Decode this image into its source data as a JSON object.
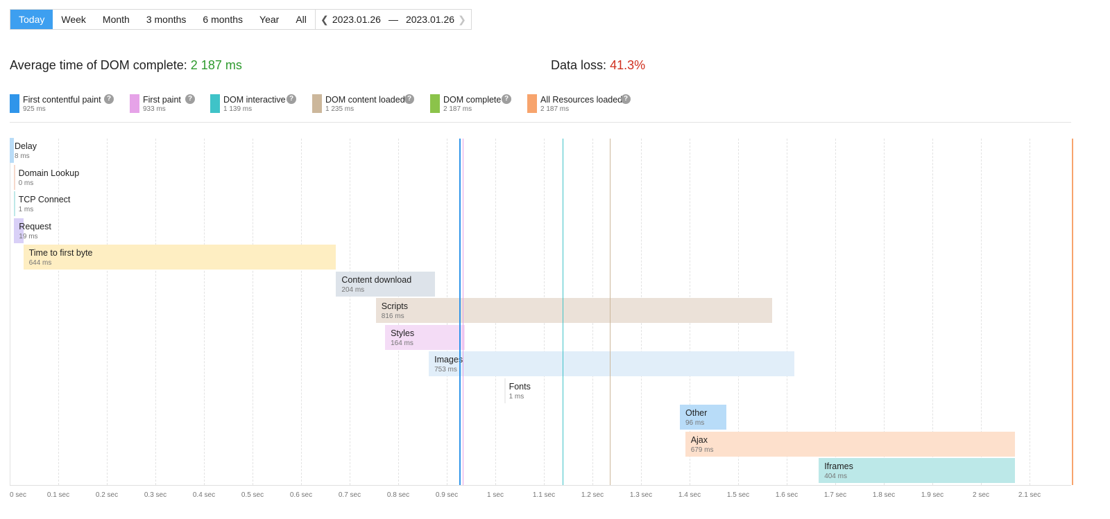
{
  "toolbar": {
    "periods": [
      {
        "label": "Today",
        "active": true
      },
      {
        "label": "Week",
        "active": false
      },
      {
        "label": "Month",
        "active": false
      },
      {
        "label": "3 months",
        "active": false
      },
      {
        "label": "6 months",
        "active": false
      },
      {
        "label": "Year",
        "active": false
      },
      {
        "label": "All",
        "active": false
      }
    ],
    "date_from": "2023.01.26",
    "date_separator": "—",
    "date_to": "2023.01.26",
    "prev_icon": "chevron-left-icon",
    "next_icon": "chevron-right-icon"
  },
  "summary": {
    "avg_label": "Average time of DOM complete:",
    "avg_value": "2 187 ms",
    "loss_label": "Data loss:",
    "loss_value": "41.3%"
  },
  "legend": [
    {
      "name": "First contentful paint",
      "value": "925 ms",
      "color": "#2f95ea",
      "ms": 925
    },
    {
      "name": "First paint",
      "value": "933 ms",
      "color": "#e6a3e8",
      "ms": 933
    },
    {
      "name": "DOM interactive",
      "value": "1 139 ms",
      "color": "#3fc3c8",
      "ms": 1139
    },
    {
      "name": "DOM content loaded",
      "value": "1 235 ms",
      "color": "#ccb79b",
      "ms": 1235
    },
    {
      "name": "DOM complete",
      "value": "2 187 ms",
      "color": "#8bc34a",
      "ms": 2187
    },
    {
      "name": "All Resources loaded",
      "value": "2 187 ms",
      "color": "#f7a46d",
      "ms": 2187
    }
  ],
  "chart_data": {
    "type": "bar",
    "orientation": "waterfall",
    "xlim_sec": [
      0,
      2.2
    ],
    "x_ticks": [
      "0 sec",
      "0.1 sec",
      "0.2 sec",
      "0.3 sec",
      "0.4 sec",
      "0.5 sec",
      "0.6 sec",
      "0.7 sec",
      "0.8 sec",
      "0.9 sec",
      "1 sec",
      "1.1 sec",
      "1.2 sec",
      "1.3 sec",
      "1.4 sec",
      "1.5 sec",
      "1.6 sec",
      "1.7 sec",
      "1.8 sec",
      "1.9 sec",
      "2 sec",
      "2.1 sec"
    ],
    "phases": [
      {
        "name": "Delay",
        "value": "8 ms",
        "start_ms": 0,
        "duration_ms": 8,
        "color": "#b9dcf7"
      },
      {
        "name": "Domain Lookup",
        "value": "0 ms",
        "start_ms": 8,
        "duration_ms": 0,
        "color": "#f6d9cc"
      },
      {
        "name": "TCP Connect",
        "value": "1 ms",
        "start_ms": 8,
        "duration_ms": 1,
        "color": "#bfe8e8"
      },
      {
        "name": "Request",
        "value": "19 ms",
        "start_ms": 9,
        "duration_ms": 19,
        "color": "#d9d0f7"
      },
      {
        "name": "Time to first byte",
        "value": "644 ms",
        "start_ms": 28,
        "duration_ms": 644,
        "color": "#feeec2"
      },
      {
        "name": "Content download",
        "value": "204 ms",
        "start_ms": 672,
        "duration_ms": 204,
        "color": "#dde3ea"
      },
      {
        "name": "Scripts",
        "value": "816 ms",
        "start_ms": 754,
        "duration_ms": 816,
        "color": "#ebe1d8"
      },
      {
        "name": "Styles",
        "value": "164 ms",
        "start_ms": 773,
        "duration_ms": 164,
        "color": "#f4dcf6"
      },
      {
        "name": "Images",
        "value": "753 ms",
        "start_ms": 863,
        "duration_ms": 753,
        "color": "#e1eef9"
      },
      {
        "name": "Fonts",
        "value": "1 ms",
        "start_ms": 1018,
        "duration_ms": 1,
        "color": "#eeeeee"
      },
      {
        "name": "Other",
        "value": "96 ms",
        "start_ms": 1380,
        "duration_ms": 96,
        "color": "#b8dcf8"
      },
      {
        "name": "Ajax",
        "value": "679 ms",
        "start_ms": 1391,
        "duration_ms": 679,
        "color": "#fde0cc"
      },
      {
        "name": "Iframes",
        "value": "404 ms",
        "start_ms": 1666,
        "duration_ms": 404,
        "color": "#bce8e8"
      }
    ]
  }
}
